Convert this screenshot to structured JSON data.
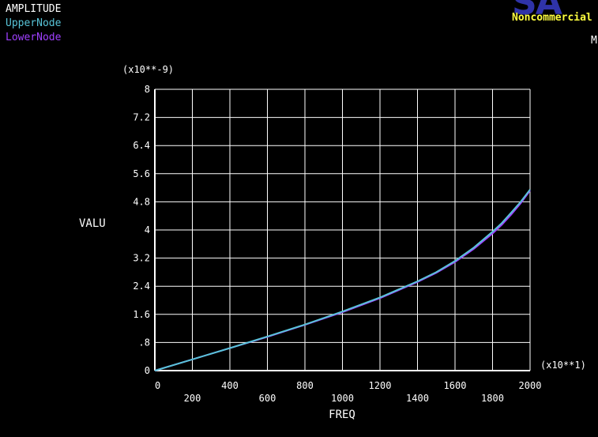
{
  "legend": {
    "title": "AMPLITUDE",
    "upper_label": "UpperNode",
    "lower_label": "LowerNode"
  },
  "branding": {
    "logo_text": "SA",
    "noncommercial_text": "Noncommercial",
    "corner_text": "M"
  },
  "colors": {
    "background": "#000000",
    "grid": "#ffffff",
    "upper_series": "#58c4d8",
    "lower_series": "#a040ff",
    "text": "#ffffff",
    "noncommercial": "#ffff40"
  },
  "chart_data": {
    "type": "line",
    "xlabel": "FREQ",
    "ylabel": "VALU",
    "x_multiplier_label": "(x10**1)",
    "y_multiplier_label": "(x10**-9)",
    "xlim": [
      0,
      2000
    ],
    "ylim": [
      0,
      8
    ],
    "x_ticks": [
      0,
      200,
      400,
      600,
      800,
      1000,
      1200,
      1400,
      1600,
      1800,
      2000
    ],
    "x_tick_labels": [
      "0",
      "200",
      "400",
      "600",
      "800",
      "1000",
      "1200",
      "1400",
      "1600",
      "1800",
      "2000"
    ],
    "y_ticks": [
      0,
      0.8,
      1.6,
      2.4,
      3.2,
      4.0,
      4.8,
      5.6,
      6.4,
      7.2,
      8.0
    ],
    "y_tick_labels": [
      "0",
      ".8",
      "1.6",
      "2.4",
      "3.2",
      "4",
      "4.8",
      "5.6",
      "6.4",
      "7.2",
      "8"
    ],
    "grid": true,
    "series": [
      {
        "name": "UpperNode",
        "x": [
          0,
          200,
          400,
          600,
          800,
          1000,
          1200,
          1400,
          1500,
          1600,
          1700,
          1800,
          1850,
          1900,
          1950,
          2000
        ],
        "values": [
          0,
          0.32,
          0.64,
          0.97,
          1.31,
          1.68,
          2.08,
          2.54,
          2.8,
          3.12,
          3.5,
          3.95,
          4.2,
          4.5,
          4.8,
          5.15
        ]
      },
      {
        "name": "LowerNode",
        "x": [
          0,
          200,
          400,
          600,
          800,
          1000,
          1200,
          1400,
          1500,
          1600,
          1700,
          1800,
          1850,
          1900,
          1950,
          2000
        ],
        "values": [
          0,
          0.32,
          0.64,
          0.96,
          1.3,
          1.66,
          2.06,
          2.52,
          2.78,
          3.09,
          3.46,
          3.9,
          4.15,
          4.44,
          4.76,
          5.12
        ]
      }
    ]
  }
}
